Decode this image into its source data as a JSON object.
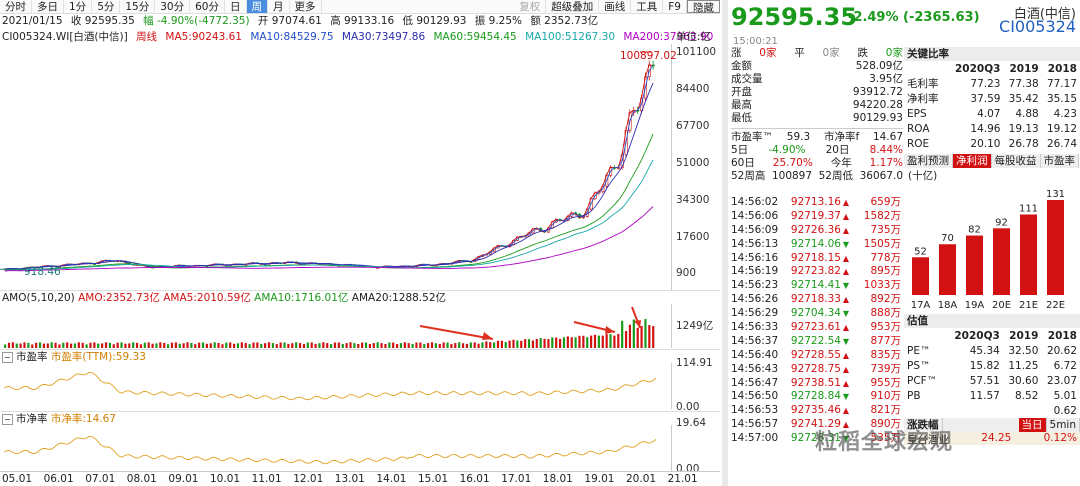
{
  "tabs": [
    "分时",
    "多日",
    "1分",
    "5分",
    "15分",
    "30分",
    "60分",
    "日",
    "周",
    "月",
    "更多",
    "复权",
    "超级叠加",
    "画线",
    "工具",
    "F9",
    "隐藏"
  ],
  "info": {
    "date": "2021/01/15",
    "close": "收 92595.35",
    "amp": "幅 -4.90%(-4772.35)",
    "open": "开 97074.61",
    "high": "高 99133.16",
    "low": "低 90129.93",
    "turn": "振 9.25%",
    "amount": "额 2352.73亿"
  },
  "ma": {
    "code": "CI005324.WI",
    "name": "[白酒(中信)]",
    "period": "周线",
    "ma5": "MA5:90243.61",
    "ma10": "MA10:84529.75",
    "ma30": "MA30:73497.86",
    "ma60": "MA60:59454.45",
    "ma100": "MA100:51267.30",
    "ma200": "MA200:37963.90",
    "unit": "单位:亿"
  },
  "axis_main": [
    "101100",
    "84400",
    "67700",
    "51000",
    "34300",
    "17600",
    "900"
  ],
  "peak_label": "100897.02",
  "low_label": "918.46",
  "amo": {
    "label": "AMO(5,10,20)",
    "v": "AMO:2352.73亿",
    "ma5": "AMA5:2010.59亿",
    "ma10": "AMA10:1716.01亿",
    "ma20": "AMA20:1288.52亿",
    "axis": "1249亿"
  },
  "pe": {
    "label": "市盈率",
    "v": "市盈率(TTM):59.33",
    "top": "114.91",
    "bot": "0.00"
  },
  "pb": {
    "label": "市净率",
    "v": "市净率:14.67",
    "top": "19.64",
    "bot": "0.00"
  },
  "xticks": [
    "05.01",
    "06.01",
    "07.01",
    "08.01",
    "09.01",
    "10.01",
    "11.01",
    "12.01",
    "13.01",
    "14.01",
    "15.01",
    "16.01",
    "17.01",
    "18.01",
    "19.01",
    "20.01",
    "21.01"
  ],
  "quote": {
    "price": "92595.35",
    "change": "-2.49% (-2365.63)",
    "name": "白酒(中信)",
    "code": "CI005324",
    "time": "15:00:21"
  },
  "stats_left": [
    [
      "涨",
      "0家",
      "平",
      "0家"
    ],
    [
      "跌",
      "0家",
      "",
      ""
    ]
  ],
  "stats": [
    [
      "金额",
      "528.09亿"
    ],
    [
      "成交量",
      "3.95亿"
    ],
    [
      "开盘",
      "93912.72"
    ],
    [
      "最高",
      "94220.28"
    ],
    [
      "最低",
      "90129.93"
    ]
  ],
  "stats2": [
    [
      "市盈率™",
      "59.3",
      "市净率f",
      "14.67"
    ],
    [
      "5日",
      "-4.90%",
      "20日",
      "8.44%"
    ],
    [
      "60日",
      "25.70%",
      "今年",
      "1.17%"
    ],
    [
      "52周高",
      "100897",
      "52周低",
      "36067.0"
    ]
  ],
  "ticks": [
    [
      "14:56:02",
      "92713.16",
      "up",
      "659万"
    ],
    [
      "14:56:06",
      "92719.37",
      "up",
      "1582万"
    ],
    [
      "14:56:09",
      "92726.36",
      "up",
      "735万"
    ],
    [
      "14:56:13",
      "92714.06",
      "down",
      "1505万"
    ],
    [
      "14:56:16",
      "92718.15",
      "up",
      "778万"
    ],
    [
      "14:56:19",
      "92723.82",
      "up",
      "895万"
    ],
    [
      "14:56:23",
      "92714.41",
      "down",
      "1033万"
    ],
    [
      "14:56:26",
      "92718.33",
      "up",
      "892万"
    ],
    [
      "14:56:29",
      "92704.34",
      "down",
      "888万"
    ],
    [
      "14:56:33",
      "92723.61",
      "up",
      "953万"
    ],
    [
      "14:56:37",
      "92722.54",
      "down",
      "877万"
    ],
    [
      "14:56:40",
      "92728.55",
      "up",
      "835万"
    ],
    [
      "14:56:43",
      "92728.75",
      "up",
      "739万"
    ],
    [
      "14:56:47",
      "92738.51",
      "up",
      "955万"
    ],
    [
      "14:56:50",
      "92728.84",
      "down",
      "910万"
    ],
    [
      "14:56:53",
      "92735.46",
      "up",
      "821万"
    ],
    [
      "14:56:57",
      "92741.29",
      "up",
      "890万"
    ],
    [
      "14:57:00",
      "92728.31",
      "down",
      "535万"
    ]
  ],
  "fin": {
    "title": "关键比率",
    "cols": [
      "",
      "2020Q3",
      "2019",
      "2018"
    ],
    "rows": [
      [
        "毛利率",
        "77.23",
        "77.38",
        "77.17"
      ],
      [
        "净利率",
        "37.59",
        "35.42",
        "35.15"
      ],
      [
        "EPS",
        "4.07",
        "4.88",
        "4.23"
      ],
      [
        "ROA",
        "14.96",
        "19.13",
        "19.12"
      ],
      [
        "ROE",
        "20.10",
        "26.78",
        "26.74"
      ]
    ]
  },
  "profit_tabs": [
    "盈利预测",
    "净利润",
    "每股收益",
    "市盈率"
  ],
  "profit_unit": "(十亿)",
  "profit": {
    "type": "bar",
    "categories": [
      "17A",
      "18A",
      "19A",
      "20E",
      "21E",
      "22E"
    ],
    "values": [
      52,
      70,
      82,
      92,
      111,
      131
    ]
  },
  "val": {
    "title": "估值",
    "cols": [
      "",
      "2020Q3",
      "2019",
      "2018"
    ],
    "rows": [
      [
        "PE™",
        "45.34",
        "32.50",
        "20.62"
      ],
      [
        "PS™",
        "15.82",
        "11.25",
        "6.72"
      ],
      [
        "PCF™",
        "57.51",
        "30.60",
        "23.07"
      ],
      [
        "PB",
        "11.57",
        "8.52",
        "5.01"
      ],
      [
        "",
        "",
        "",
        "0.62"
      ]
    ]
  },
  "board": {
    "title": "涨跌幅",
    "t1": "当日",
    "t2": "5min",
    "name": "皇台酒业",
    "v1": "24.25",
    "v2": "0.12%"
  },
  "watermark": "粒稻全球宏观"
}
